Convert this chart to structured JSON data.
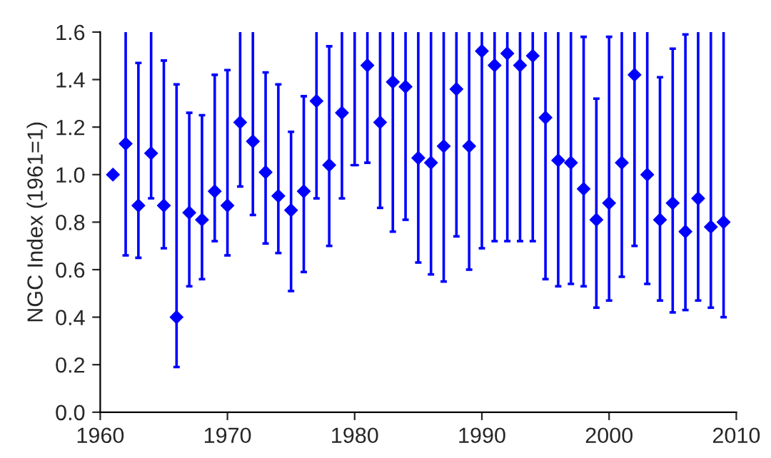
{
  "chart_data": {
    "type": "scatter",
    "ylabel": "NGC Index (1961=1)",
    "marker": "diamond",
    "grid": false,
    "legend": false,
    "xlim": [
      1960,
      2010
    ],
    "xticks": [
      1960,
      1970,
      1980,
      1990,
      2000,
      2010
    ],
    "ylim": [
      0,
      1.6
    ],
    "yticks": [
      {
        "value": 0,
        "label": "0.0"
      },
      {
        "value": 0.2,
        "label": "0.2"
      },
      {
        "value": 0.4,
        "label": "0.4"
      },
      {
        "value": 0.6,
        "label": "0.6"
      },
      {
        "value": 0.8,
        "label": "0.8"
      },
      {
        "value": 1.0,
        "label": "1.0"
      },
      {
        "value": 1.2,
        "label": "1.2"
      },
      {
        "value": 1.4,
        "label": "1.4"
      },
      {
        "value": 1.6,
        "label": "1.6"
      }
    ],
    "series": [
      {
        "color": "#0000ff",
        "x": [
          1961,
          1962,
          1963,
          1964,
          1965,
          1966,
          1967,
          1968,
          1969,
          1970,
          1971,
          1972,
          1973,
          1974,
          1975,
          1976,
          1977,
          1978,
          1979,
          1980,
          1981,
          1982,
          1983,
          1984,
          1985,
          1986,
          1987,
          1988,
          1989,
          1990,
          1991,
          1992,
          1993,
          1994,
          1995,
          1996,
          1997,
          1998,
          1999,
          2000,
          2001,
          2002,
          2003,
          2004,
          2005,
          2006,
          2007,
          2008,
          2009
        ],
        "values": [
          1.0,
          1.13,
          0.87,
          1.09,
          0.87,
          0.4,
          0.84,
          0.81,
          0.93,
          0.87,
          1.22,
          1.14,
          1.01,
          0.91,
          0.85,
          0.93,
          1.31,
          1.04,
          1.26,
          null,
          1.46,
          1.22,
          1.39,
          1.37,
          1.07,
          1.05,
          1.12,
          1.36,
          1.12,
          1.52,
          1.46,
          1.51,
          1.46,
          1.5,
          1.24,
          1.06,
          1.05,
          0.94,
          0.81,
          0.88,
          1.05,
          1.42,
          1.0,
          0.81,
          0.88,
          0.76,
          0.9,
          0.78,
          0.8
        ],
        "errors": [
          null,
          [
            0.66,
            1.6
          ],
          [
            0.65,
            1.47
          ],
          [
            0.9,
            1.6
          ],
          [
            0.69,
            1.48
          ],
          [
            0.19,
            1.38
          ],
          [
            0.53,
            1.26
          ],
          [
            0.56,
            1.25
          ],
          [
            0.72,
            1.42
          ],
          [
            0.66,
            1.44
          ],
          [
            0.95,
            1.6
          ],
          [
            0.83,
            1.6
          ],
          [
            0.71,
            1.43
          ],
          [
            0.67,
            1.38
          ],
          [
            0.51,
            1.18
          ],
          [
            0.59,
            1.33
          ],
          [
            0.9,
            1.6
          ],
          [
            0.7,
            1.54
          ],
          [
            0.9,
            1.6
          ],
          null,
          [
            1.05,
            1.6
          ],
          [
            0.86,
            1.6
          ],
          [
            0.76,
            1.6
          ],
          [
            0.81,
            1.6
          ],
          [
            0.63,
            1.6
          ],
          [
            0.58,
            1.6
          ],
          [
            0.55,
            1.6
          ],
          [
            0.74,
            1.6
          ],
          [
            0.6,
            1.6
          ],
          [
            0.69,
            1.6
          ],
          [
            0.72,
            1.6
          ],
          [
            0.72,
            1.6
          ],
          [
            0.72,
            1.6
          ],
          [
            0.72,
            1.6
          ],
          [
            0.56,
            1.6
          ],
          [
            0.53,
            1.6
          ],
          [
            0.54,
            1.6
          ],
          [
            0.53,
            1.58
          ],
          [
            0.44,
            1.32
          ],
          [
            0.47,
            1.58
          ],
          [
            0.57,
            1.6
          ],
          [
            0.7,
            1.6
          ],
          [
            0.54,
            1.6
          ],
          [
            0.47,
            1.41
          ],
          [
            0.42,
            1.53
          ],
          [
            0.43,
            1.59
          ],
          [
            0.47,
            1.6
          ],
          [
            0.44,
            1.6
          ],
          [
            0.4,
            1.6
          ]
        ]
      },
      {
        "type": "line",
        "color": "#0000ff",
        "marker": "none",
        "line_style": "solid",
        "x": [
          1979.75,
          1980.25,
          1980,
          1980
        ],
        "values": [
          1.04,
          1.04,
          1.04,
          1.6
        ]
      }
    ]
  }
}
